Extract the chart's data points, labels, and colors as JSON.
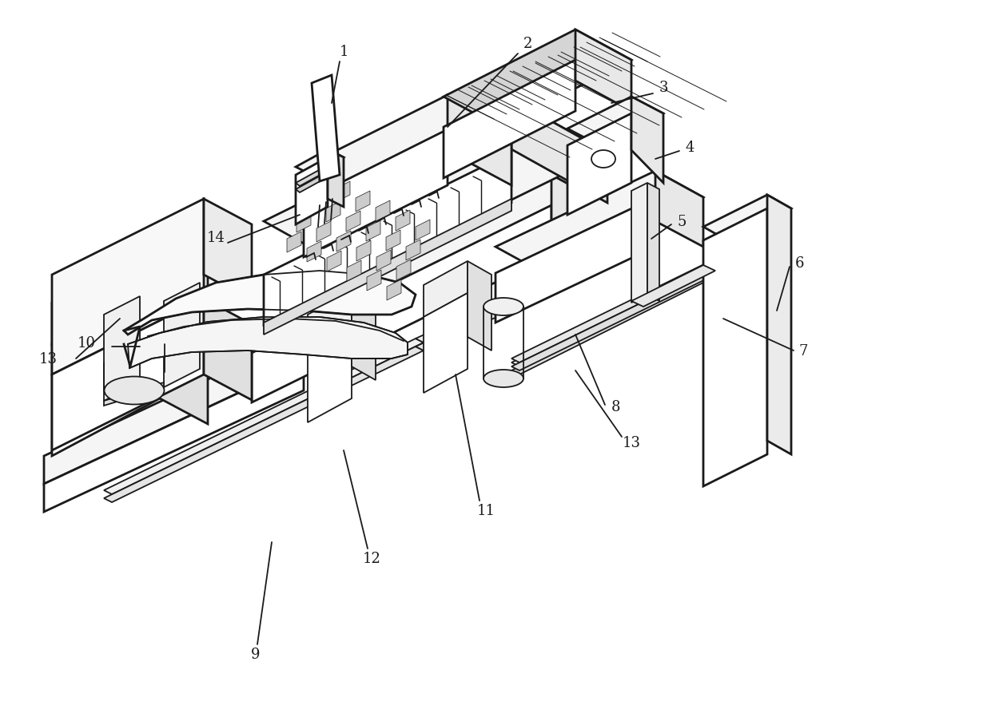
{
  "background_color": "#ffffff",
  "line_color": "#1a1a1a",
  "lw": 1.3,
  "blw": 2.0,
  "fig_width": 12.4,
  "fig_height": 9.04,
  "label_fontsize": 13
}
